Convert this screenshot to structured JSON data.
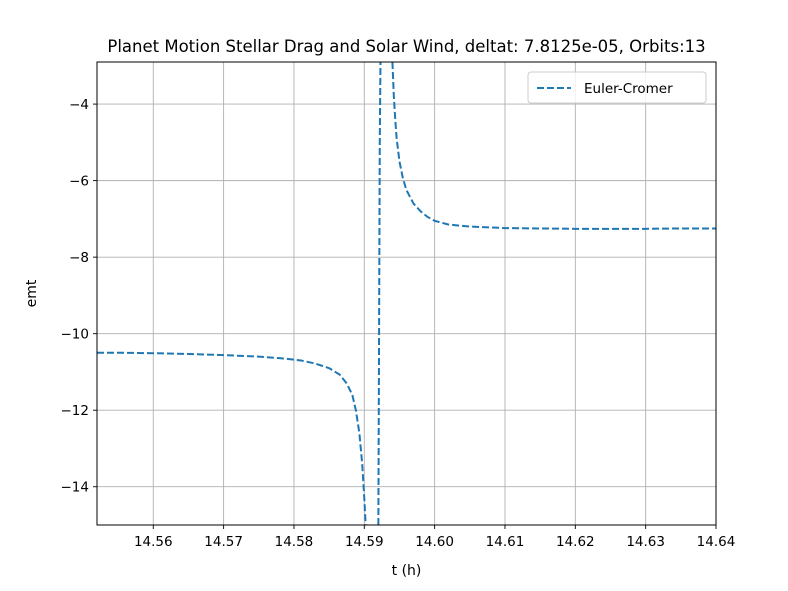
{
  "chart_data": {
    "type": "line",
    "title": "Planet Motion Stellar Drag and Solar Wind, deltat: 7.8125e-05, Orbits:13",
    "xlabel": "t (h)",
    "ylabel": "emt",
    "xlim": [
      14.552,
      14.64
    ],
    "ylim": [
      -15.0,
      -2.9
    ],
    "xticks": [
      14.56,
      14.57,
      14.58,
      14.59,
      14.6,
      14.61,
      14.62,
      14.63,
      14.64
    ],
    "xtick_labels": [
      "14.56",
      "14.57",
      "14.58",
      "14.59",
      "14.60",
      "14.61",
      "14.62",
      "14.63",
      "14.64"
    ],
    "yticks": [
      -14,
      -12,
      -10,
      -8,
      -6,
      -4
    ],
    "ytick_labels": [
      "−14",
      "−12",
      "−10",
      "−8",
      "−6",
      "−4"
    ],
    "grid": true,
    "legend_position": "upper right",
    "series": [
      {
        "name": "Euler-Cromer",
        "color": "#1f77b4",
        "linestyle": "dashed",
        "segments": [
          {
            "x": [
              14.552,
              14.556,
              14.56,
              14.565,
              14.57,
              14.575,
              14.578,
              14.581,
              14.583,
              14.585,
              14.5865,
              14.5875,
              14.5883,
              14.5888,
              14.5893,
              14.5897,
              14.59,
              14.5902
            ],
            "y": [
              -10.5,
              -10.5,
              -10.51,
              -10.53,
              -10.56,
              -10.6,
              -10.64,
              -10.7,
              -10.78,
              -10.9,
              -11.07,
              -11.3,
              -11.6,
              -12.0,
              -12.6,
              -13.4,
              -14.3,
              -15.0
            ]
          },
          {
            "x": [
              14.592,
              14.5921,
              14.5922,
              14.5923
            ],
            "y": [
              -15.0,
              -10.0,
              -5.0,
              -2.9
            ]
          },
          {
            "x": [
              14.594,
              14.5942,
              14.5944,
              14.5946,
              14.595,
              14.5955,
              14.596,
              14.597,
              14.598,
              14.599,
              14.6,
              14.602,
              14.605,
              14.61,
              14.615,
              14.62,
              14.625,
              14.63,
              14.635,
              14.64
            ],
            "y": [
              -2.9,
              -3.8,
              -4.4,
              -4.9,
              -5.5,
              -5.95,
              -6.25,
              -6.6,
              -6.8,
              -6.95,
              -7.05,
              -7.15,
              -7.2,
              -7.24,
              -7.25,
              -7.26,
              -7.26,
              -7.26,
              -7.25,
              -7.25
            ]
          }
        ]
      }
    ]
  }
}
